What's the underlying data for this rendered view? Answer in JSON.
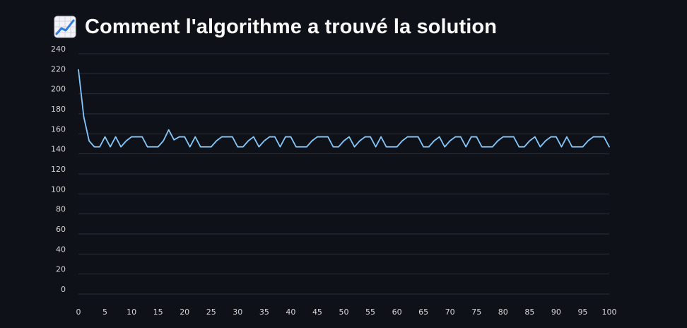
{
  "page": {
    "title": "Comment l'algorithme a trouvé la solution",
    "title_icon": "chart-increasing-icon"
  },
  "colors": {
    "background": "#0e1117",
    "grid": "#2a2e38",
    "line": "#83c9ff",
    "text": "#fafafa",
    "tick_text": "#d6d6d6"
  },
  "chart_data": {
    "type": "line",
    "title": "",
    "xlabel": "",
    "ylabel": "",
    "grid": true,
    "xlim": [
      0,
      100
    ],
    "ylim": [
      0,
      240
    ],
    "x_ticks": [
      0,
      5,
      10,
      15,
      20,
      25,
      30,
      35,
      40,
      45,
      50,
      55,
      60,
      65,
      70,
      75,
      80,
      85,
      90,
      95,
      100
    ],
    "y_ticks": [
      0,
      20,
      40,
      60,
      80,
      100,
      120,
      140,
      160,
      180,
      200,
      220,
      240
    ],
    "series": [
      {
        "name": "",
        "values": [
          224,
          177,
          153,
          147,
          147,
          157,
          147,
          157,
          147,
          153,
          157,
          157,
          157,
          147,
          147,
          147,
          153,
          164,
          154,
          157,
          157,
          147,
          157,
          147,
          147,
          147,
          153,
          157,
          157,
          157,
          147,
          147,
          153,
          157,
          147,
          153,
          157,
          157,
          147,
          157,
          157,
          147,
          147,
          147,
          153,
          157,
          157,
          157,
          147,
          147,
          153,
          157,
          147,
          153,
          157,
          157,
          147,
          157,
          147,
          147,
          147,
          153,
          157,
          157,
          157,
          147,
          147,
          153,
          157,
          147,
          153,
          157,
          157,
          147,
          157,
          157,
          147,
          147,
          147,
          153,
          157,
          157,
          157,
          147,
          147,
          153,
          157,
          147,
          153,
          157,
          157,
          147,
          157,
          147,
          147,
          147,
          153,
          157,
          157,
          157,
          147
        ]
      }
    ]
  }
}
